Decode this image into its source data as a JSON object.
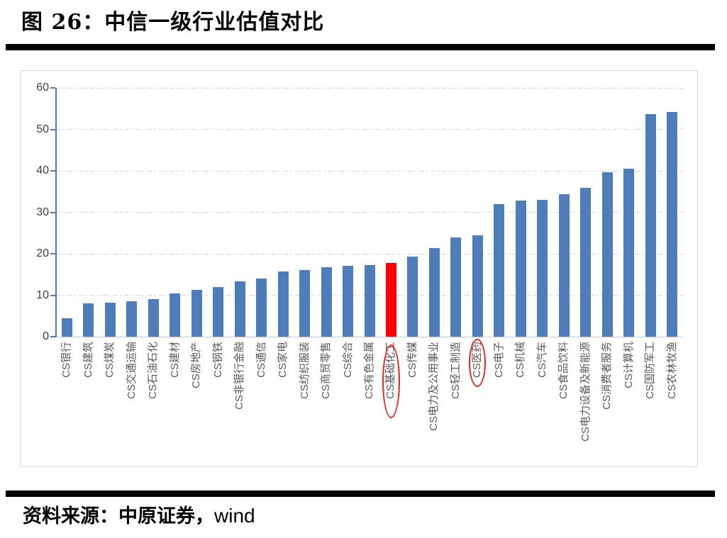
{
  "figure": {
    "title": "图 26：中信一级行业估值对比"
  },
  "source": {
    "prefix": "资料来源：中原证券，",
    "suffix": "wind"
  },
  "colors": {
    "bar_blue": "#4E7DBB",
    "bar_highlight_red": "#FF0000",
    "annotation_red": "#E8251D",
    "axis_line_blue": "#4E7DBB",
    "gridline_gray": "#D4D4D4",
    "axis_text_gray": "#595959"
  },
  "chart_data": {
    "type": "bar",
    "title": "",
    "xlabel": "",
    "ylabel": "",
    "ylim": [
      0,
      60
    ],
    "yticks": [
      0,
      10,
      20,
      30,
      40,
      50,
      60
    ],
    "grid": "horizontal-dashed",
    "legend": "none",
    "categories": [
      "CS银行",
      "CS建筑",
      "CS煤炭",
      "CS交通运输",
      "CS石油石化",
      "CS建材",
      "CS房地产",
      "CS钢铁",
      "CS非银行金融",
      "CS通信",
      "CS家电",
      "CS纺织服装",
      "CS商贸零售",
      "CS综合",
      "CS有色金属",
      "CS基础化工",
      "CS传媒",
      "CS电力及公用事业",
      "CS轻工制造",
      "CS医药",
      "CS电子",
      "CS机械",
      "CS汽车",
      "CS食品饮料",
      "CS电力设备及新能源",
      "CS消费者服务",
      "CS计算机",
      "CS国防军工",
      "CS农林牧渔"
    ],
    "values": [
      4.5,
      8.1,
      8.2,
      8.6,
      9.0,
      10.5,
      11.2,
      11.9,
      13.3,
      14.0,
      15.7,
      16.1,
      16.8,
      17.1,
      17.2,
      17.8,
      19.4,
      21.4,
      24.0,
      24.5,
      31.9,
      32.9,
      33.0,
      34.4,
      35.9,
      39.7,
      40.5,
      53.6,
      54.2
    ],
    "highlighted_bar": {
      "category": "CS基础化工",
      "index": 15
    },
    "circled_labels": [
      {
        "category": "CS基础化工",
        "index": 15
      },
      {
        "category": "CS医药",
        "index": 19
      }
    ]
  }
}
